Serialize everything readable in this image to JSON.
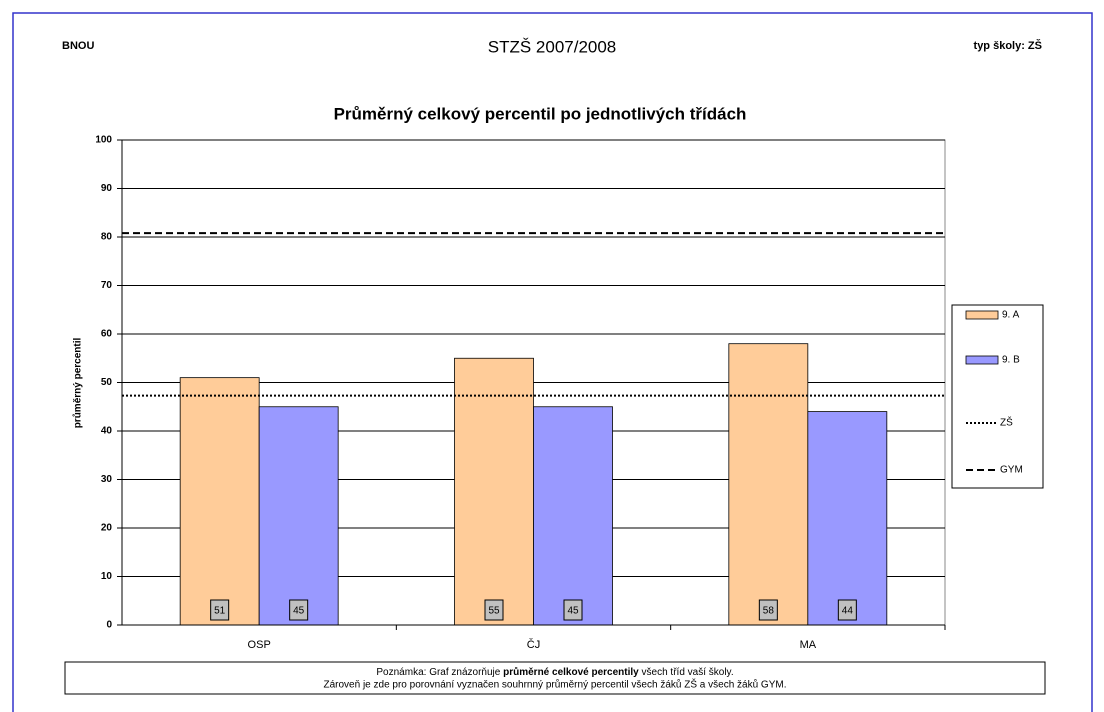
{
  "header": {
    "left": "BNOU",
    "center": "STZŠ 2007/2008",
    "right": "typ školy: ZŠ"
  },
  "chart_data": {
    "type": "bar",
    "title": "Průměrný celkový percentil po jednotlivých třídách",
    "y_label": "průměrný percentil",
    "categories": [
      "OSP",
      "ČJ",
      "MA"
    ],
    "series": [
      {
        "name": "9. A",
        "color": "#ffcc99",
        "values": [
          51,
          55,
          58
        ]
      },
      {
        "name": "9. B",
        "color": "#9999ff",
        "values": [
          45,
          45,
          44
        ]
      }
    ],
    "reference_lines": [
      {
        "name": "ZŠ",
        "value": 47.3,
        "style": "dotted",
        "color": "#000000"
      },
      {
        "name": "GYM",
        "value": 80.8,
        "style": "dashed",
        "color": "#000000"
      }
    ],
    "ylim": [
      0,
      100
    ],
    "yticks": [
      0,
      10,
      20,
      30,
      40,
      50,
      60,
      70,
      80,
      90,
      100
    ],
    "grid": true,
    "legend": "right"
  },
  "note": {
    "line1": [
      "Poznámka: Graf znázorňuje ",
      "průměrné celkové percentily",
      " všech tříd vaší školy."
    ],
    "line2": "Zároveň je zde pro porovnání vyznačen souhrnný průměrný percentil všech žáků ZŠ a všech žáků GYM."
  }
}
